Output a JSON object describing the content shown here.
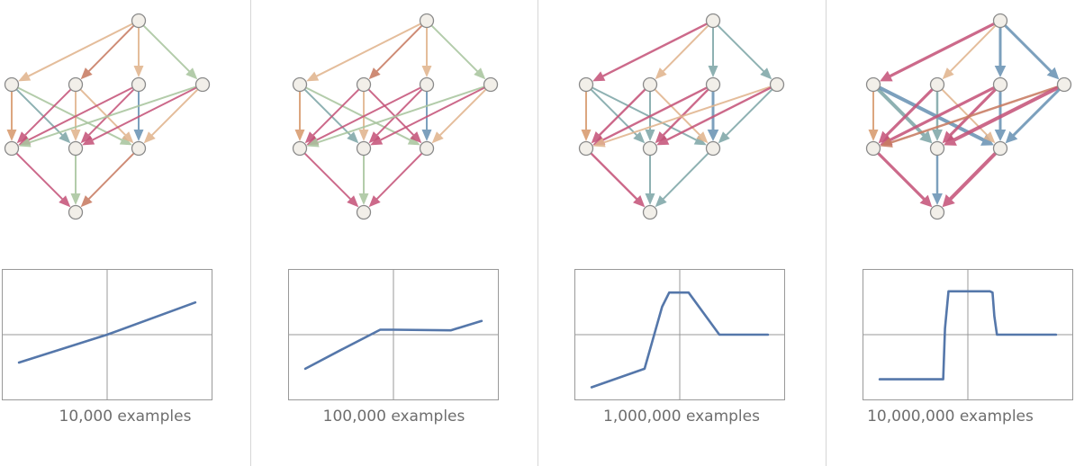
{
  "colors": {
    "orange": "#d89a6e",
    "peach": "#e1b48e",
    "green": "#a9c59f",
    "teal": "#7fa7a8",
    "blue": "#6a93b4",
    "pink": "#c5557a",
    "rust": "#c87c62",
    "node_fill": "#f2efe9",
    "node_stroke": "#8a8a8a",
    "line": "#5577aa"
  },
  "panels": [
    {
      "caption": "10,000 examples",
      "edges": [
        {
          "from": 0,
          "to": 1,
          "color": "peach",
          "w": 2
        },
        {
          "from": 0,
          "to": 2,
          "color": "rust",
          "w": 2
        },
        {
          "from": 0,
          "to": 3,
          "color": "peach",
          "w": 2
        },
        {
          "from": 0,
          "to": 4,
          "color": "green",
          "w": 2
        },
        {
          "from": 1,
          "to": 5,
          "color": "orange",
          "w": 2
        },
        {
          "from": 1,
          "to": 6,
          "color": "teal",
          "w": 2
        },
        {
          "from": 1,
          "to": 7,
          "color": "green",
          "w": 2
        },
        {
          "from": 2,
          "to": 5,
          "color": "pink",
          "w": 2
        },
        {
          "from": 2,
          "to": 6,
          "color": "peach",
          "w": 2
        },
        {
          "from": 2,
          "to": 7,
          "color": "peach",
          "w": 2
        },
        {
          "from": 3,
          "to": 5,
          "color": "pink",
          "w": 2
        },
        {
          "from": 3,
          "to": 6,
          "color": "pink",
          "w": 2
        },
        {
          "from": 3,
          "to": 7,
          "color": "blue",
          "w": 2
        },
        {
          "from": 4,
          "to": 5,
          "color": "green",
          "w": 2
        },
        {
          "from": 4,
          "to": 6,
          "color": "pink",
          "w": 2
        },
        {
          "from": 4,
          "to": 7,
          "color": "peach",
          "w": 2
        },
        {
          "from": 5,
          "to": 8,
          "color": "pink",
          "w": 2
        },
        {
          "from": 6,
          "to": 8,
          "color": "green",
          "w": 2
        },
        {
          "from": 7,
          "to": 8,
          "color": "rust",
          "w": 2
        }
      ],
      "curve_x": [
        -1,
        0,
        1
      ],
      "curve_y": [
        -0.45,
        0,
        0.52
      ]
    },
    {
      "caption": "100,000 examples",
      "edges": [
        {
          "from": 0,
          "to": 1,
          "color": "peach",
          "w": 2
        },
        {
          "from": 0,
          "to": 2,
          "color": "rust",
          "w": 2
        },
        {
          "from": 0,
          "to": 3,
          "color": "peach",
          "w": 2
        },
        {
          "from": 0,
          "to": 4,
          "color": "green",
          "w": 2
        },
        {
          "from": 1,
          "to": 5,
          "color": "orange",
          "w": 2
        },
        {
          "from": 1,
          "to": 6,
          "color": "teal",
          "w": 2
        },
        {
          "from": 1,
          "to": 7,
          "color": "green",
          "w": 2
        },
        {
          "from": 2,
          "to": 5,
          "color": "pink",
          "w": 2
        },
        {
          "from": 2,
          "to": 6,
          "color": "peach",
          "w": 2
        },
        {
          "from": 2,
          "to": 7,
          "color": "pink",
          "w": 2
        },
        {
          "from": 3,
          "to": 5,
          "color": "pink",
          "w": 2
        },
        {
          "from": 3,
          "to": 6,
          "color": "pink",
          "w": 2
        },
        {
          "from": 3,
          "to": 7,
          "color": "blue",
          "w": 2
        },
        {
          "from": 4,
          "to": 5,
          "color": "green",
          "w": 2
        },
        {
          "from": 4,
          "to": 6,
          "color": "pink",
          "w": 2
        },
        {
          "from": 4,
          "to": 7,
          "color": "peach",
          "w": 2
        },
        {
          "from": 5,
          "to": 8,
          "color": "pink",
          "w": 2
        },
        {
          "from": 6,
          "to": 8,
          "color": "green",
          "w": 2
        },
        {
          "from": 7,
          "to": 8,
          "color": "pink",
          "w": 2
        }
      ],
      "curve_x": [
        -1,
        -0.6,
        -0.15,
        0,
        0.65,
        1
      ],
      "curve_y": [
        -0.55,
        -0.25,
        0.08,
        0.08,
        0.07,
        0.22
      ]
    },
    {
      "caption": "1,000,000 examples",
      "edges": [
        {
          "from": 0,
          "to": 1,
          "color": "pink",
          "w": 2.4
        },
        {
          "from": 0,
          "to": 2,
          "color": "peach",
          "w": 2
        },
        {
          "from": 0,
          "to": 3,
          "color": "teal",
          "w": 2
        },
        {
          "from": 0,
          "to": 4,
          "color": "teal",
          "w": 2
        },
        {
          "from": 1,
          "to": 5,
          "color": "orange",
          "w": 2
        },
        {
          "from": 1,
          "to": 6,
          "color": "teal",
          "w": 2
        },
        {
          "from": 1,
          "to": 7,
          "color": "teal",
          "w": 2
        },
        {
          "from": 2,
          "to": 5,
          "color": "pink",
          "w": 2.4
        },
        {
          "from": 2,
          "to": 6,
          "color": "teal",
          "w": 2
        },
        {
          "from": 2,
          "to": 7,
          "color": "peach",
          "w": 2
        },
        {
          "from": 3,
          "to": 5,
          "color": "pink",
          "w": 2.4
        },
        {
          "from": 3,
          "to": 6,
          "color": "pink",
          "w": 2.4
        },
        {
          "from": 3,
          "to": 7,
          "color": "blue",
          "w": 3
        },
        {
          "from": 4,
          "to": 5,
          "color": "peach",
          "w": 2
        },
        {
          "from": 4,
          "to": 6,
          "color": "pink",
          "w": 2.4
        },
        {
          "from": 4,
          "to": 7,
          "color": "teal",
          "w": 2
        },
        {
          "from": 5,
          "to": 8,
          "color": "pink",
          "w": 2.4
        },
        {
          "from": 6,
          "to": 8,
          "color": "teal",
          "w": 2
        },
        {
          "from": 7,
          "to": 8,
          "color": "teal",
          "w": 2
        }
      ],
      "curve_x": [
        -1,
        -0.4,
        -0.2,
        -0.12,
        0,
        0.1,
        0.45,
        1
      ],
      "curve_y": [
        -0.85,
        -0.55,
        0.45,
        0.68,
        0.68,
        0.68,
        0,
        0
      ]
    },
    {
      "caption": "10,000,000 examples",
      "edges": [
        {
          "from": 0,
          "to": 1,
          "color": "pink",
          "w": 3.2
        },
        {
          "from": 0,
          "to": 2,
          "color": "peach",
          "w": 2
        },
        {
          "from": 0,
          "to": 3,
          "color": "blue",
          "w": 3
        },
        {
          "from": 0,
          "to": 4,
          "color": "blue",
          "w": 3
        },
        {
          "from": 1,
          "to": 5,
          "color": "orange",
          "w": 2
        },
        {
          "from": 1,
          "to": 6,
          "color": "teal",
          "w": 4
        },
        {
          "from": 1,
          "to": 7,
          "color": "blue",
          "w": 4
        },
        {
          "from": 2,
          "to": 5,
          "color": "pink",
          "w": 3.2
        },
        {
          "from": 2,
          "to": 6,
          "color": "teal",
          "w": 2.5
        },
        {
          "from": 2,
          "to": 7,
          "color": "peach",
          "w": 2
        },
        {
          "from": 3,
          "to": 5,
          "color": "pink",
          "w": 3.2
        },
        {
          "from": 3,
          "to": 6,
          "color": "pink",
          "w": 3.2
        },
        {
          "from": 3,
          "to": 7,
          "color": "blue",
          "w": 3
        },
        {
          "from": 4,
          "to": 5,
          "color": "rust",
          "w": 2.5
        },
        {
          "from": 4,
          "to": 6,
          "color": "pink",
          "w": 4
        },
        {
          "from": 4,
          "to": 7,
          "color": "blue",
          "w": 3
        },
        {
          "from": 5,
          "to": 8,
          "color": "pink",
          "w": 3.2
        },
        {
          "from": 6,
          "to": 8,
          "color": "blue",
          "w": 2.5
        },
        {
          "from": 7,
          "to": 8,
          "color": "pink",
          "w": 4
        }
      ],
      "curve_x": [
        -1,
        -0.28,
        -0.26,
        -0.22,
        0.25,
        0.28,
        0.3,
        0.33,
        1
      ],
      "curve_y": [
        -0.72,
        -0.72,
        0.1,
        0.7,
        0.7,
        0.68,
        0.3,
        0,
        0
      ]
    }
  ]
}
